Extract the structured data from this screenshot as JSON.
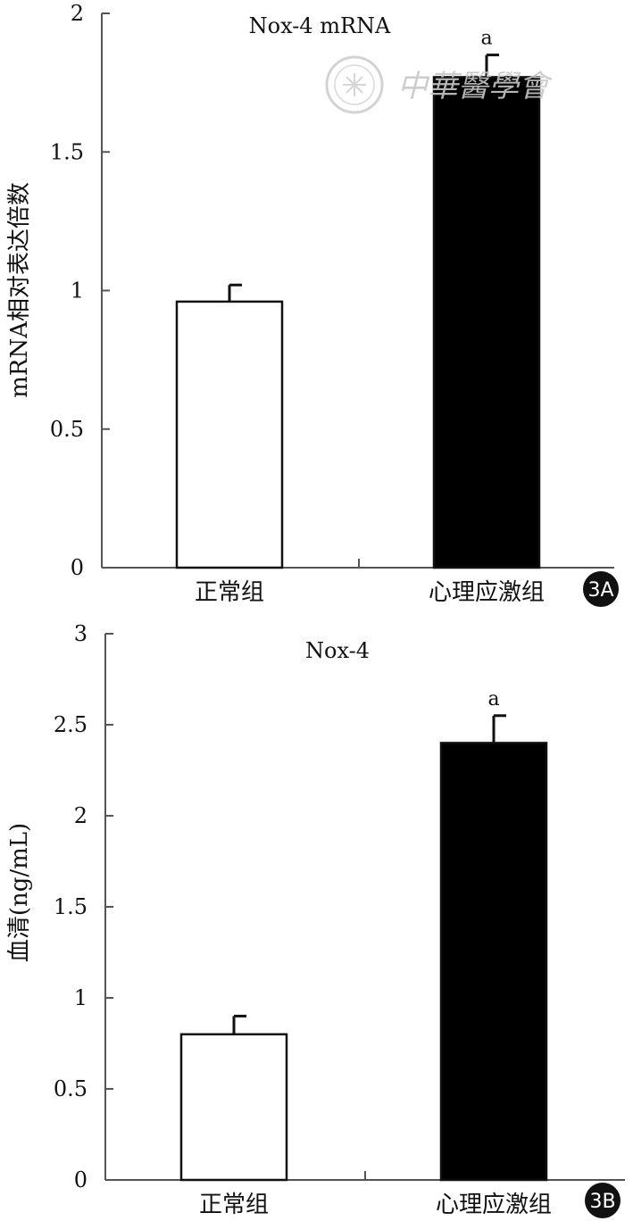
{
  "watermark": {
    "text": "中華醫學會"
  },
  "chart_data": [
    {
      "type": "bar",
      "panel_label": "3A",
      "title": "Nox-4 mRNA",
      "ylabel": "mRNA相对表达倍数",
      "xlabel": "",
      "categories": [
        "正常组",
        "心理应激组"
      ],
      "values": [
        0.96,
        1.77
      ],
      "errors": [
        0.06,
        0.08
      ],
      "bar_colors": [
        "#ffffff",
        "#000000"
      ],
      "significance": [
        "",
        "a"
      ],
      "ylim": [
        0,
        2
      ],
      "yticks": [
        0,
        0.5,
        1,
        1.5,
        2
      ],
      "ytick_labels": [
        "0",
        "0.5",
        "1",
        "1.5",
        "2"
      ],
      "grid": false,
      "legend": "none"
    },
    {
      "type": "bar",
      "panel_label": "3B",
      "title": "Nox-4",
      "ylabel": "血清(ng/mL)",
      "xlabel": "",
      "categories": [
        "正常组",
        "心理应激组"
      ],
      "values": [
        0.8,
        2.4
      ],
      "errors": [
        0.1,
        0.15
      ],
      "bar_colors": [
        "#ffffff",
        "#000000"
      ],
      "significance": [
        "",
        "a"
      ],
      "ylim": [
        0,
        3
      ],
      "yticks": [
        0,
        0.5,
        1,
        1.5,
        2,
        2.5,
        3
      ],
      "ytick_labels": [
        "0",
        "0.5",
        "1",
        "1.5",
        "2",
        "2.5",
        "3"
      ],
      "grid": false,
      "legend": "none"
    }
  ]
}
